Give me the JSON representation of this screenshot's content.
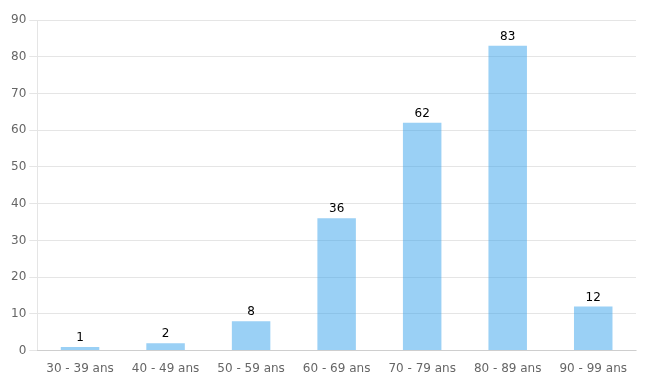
{
  "chart_data": {
    "type": "bar",
    "categories": [
      "30 - 39 ans",
      "40 - 49 ans",
      "50 - 59 ans",
      "60 - 69 ans",
      "70 - 79 ans",
      "80 - 89 ans",
      "90 - 99 ans"
    ],
    "values": [
      1,
      2,
      8,
      36,
      62,
      83,
      12
    ],
    "ylim": [
      0,
      90
    ],
    "yticks": [
      0,
      10,
      20,
      30,
      40,
      50,
      60,
      70,
      80,
      90
    ],
    "grid": true,
    "data_labels": true
  }
}
